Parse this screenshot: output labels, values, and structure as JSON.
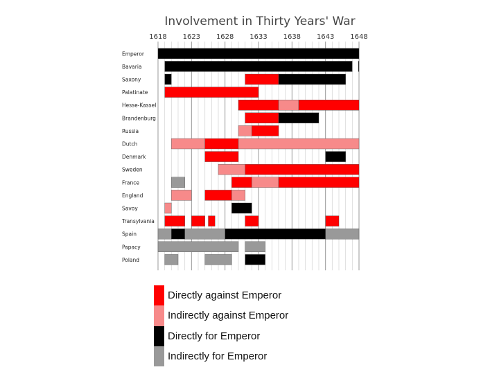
{
  "chart_data": {
    "type": "gantt",
    "title": "Involvement in Thirty Years' War",
    "x_ticks": [
      1618,
      1623,
      1628,
      1633,
      1638,
      1643,
      1648
    ],
    "xlim": [
      1618,
      1648
    ],
    "grid": true,
    "colors": {
      "direct_against": "#ff0000",
      "indirect_against": "#f78a8a",
      "direct_for": "#000000",
      "indirect_for": "#999999"
    },
    "rows": [
      {
        "label": "Emperor",
        "bars": [
          {
            "start": 1618,
            "end": 1648,
            "kind": "direct_for"
          }
        ]
      },
      {
        "label": "Bavaria",
        "bars": [
          {
            "start": 1619,
            "end": 1647,
            "kind": "direct_for"
          },
          {
            "start": 1647.9,
            "end": 1648,
            "kind": "direct_for"
          }
        ]
      },
      {
        "label": "Saxony",
        "bars": [
          {
            "start": 1619,
            "end": 1620,
            "kind": "direct_for"
          },
          {
            "start": 1631,
            "end": 1636,
            "kind": "direct_against"
          },
          {
            "start": 1636,
            "end": 1646,
            "kind": "direct_for"
          }
        ]
      },
      {
        "label": "Palatinate",
        "bars": [
          {
            "start": 1619,
            "end": 1633,
            "kind": "direct_against"
          }
        ]
      },
      {
        "label": "Hesse-Kassel",
        "bars": [
          {
            "start": 1630,
            "end": 1636,
            "kind": "direct_against"
          },
          {
            "start": 1636,
            "end": 1639,
            "kind": "indirect_against"
          },
          {
            "start": 1639,
            "end": 1648,
            "kind": "direct_against"
          }
        ]
      },
      {
        "label": "Brandenburg",
        "bars": [
          {
            "start": 1631,
            "end": 1636,
            "kind": "direct_against"
          },
          {
            "start": 1636,
            "end": 1642,
            "kind": "direct_for"
          }
        ]
      },
      {
        "label": "Russia",
        "bars": [
          {
            "start": 1630,
            "end": 1632,
            "kind": "indirect_against"
          },
          {
            "start": 1632,
            "end": 1636,
            "kind": "direct_against"
          }
        ]
      },
      {
        "label": "Dutch",
        "bars": [
          {
            "start": 1620,
            "end": 1625,
            "kind": "indirect_against"
          },
          {
            "start": 1625,
            "end": 1630,
            "kind": "direct_against"
          },
          {
            "start": 1630,
            "end": 1648,
            "kind": "indirect_against"
          }
        ]
      },
      {
        "label": "Denmark",
        "bars": [
          {
            "start": 1625,
            "end": 1630,
            "kind": "direct_against"
          },
          {
            "start": 1643,
            "end": 1646,
            "kind": "direct_for"
          }
        ]
      },
      {
        "label": "Sweden",
        "bars": [
          {
            "start": 1627,
            "end": 1631,
            "kind": "indirect_against"
          },
          {
            "start": 1631,
            "end": 1648,
            "kind": "direct_against"
          }
        ]
      },
      {
        "label": "France",
        "bars": [
          {
            "start": 1620,
            "end": 1622,
            "kind": "indirect_for"
          },
          {
            "start": 1629,
            "end": 1632,
            "kind": "direct_against"
          },
          {
            "start": 1632,
            "end": 1636,
            "kind": "indirect_against"
          },
          {
            "start": 1636,
            "end": 1648,
            "kind": "direct_against"
          }
        ]
      },
      {
        "label": "England",
        "bars": [
          {
            "start": 1620,
            "end": 1623,
            "kind": "indirect_against"
          },
          {
            "start": 1625,
            "end": 1629,
            "kind": "direct_against"
          },
          {
            "start": 1629,
            "end": 1631,
            "kind": "indirect_against"
          }
        ]
      },
      {
        "label": "Savoy",
        "bars": [
          {
            "start": 1619,
            "end": 1620,
            "kind": "indirect_against"
          },
          {
            "start": 1629,
            "end": 1632,
            "kind": "direct_for"
          }
        ]
      },
      {
        "label": "Transylvania",
        "bars": [
          {
            "start": 1619,
            "end": 1622,
            "kind": "direct_against"
          },
          {
            "start": 1623,
            "end": 1625,
            "kind": "direct_against"
          },
          {
            "start": 1625.5,
            "end": 1626.5,
            "kind": "direct_against"
          },
          {
            "start": 1631,
            "end": 1633,
            "kind": "direct_against"
          },
          {
            "start": 1643,
            "end": 1645,
            "kind": "direct_against"
          }
        ]
      },
      {
        "label": "Spain",
        "bars": [
          {
            "start": 1618,
            "end": 1620,
            "kind": "indirect_for"
          },
          {
            "start": 1620,
            "end": 1622,
            "kind": "direct_for"
          },
          {
            "start": 1622,
            "end": 1628,
            "kind": "indirect_for"
          },
          {
            "start": 1628,
            "end": 1643,
            "kind": "direct_for"
          },
          {
            "start": 1643,
            "end": 1648,
            "kind": "indirect_for"
          }
        ]
      },
      {
        "label": "Papacy",
        "bars": [
          {
            "start": 1618,
            "end": 1630,
            "kind": "indirect_for"
          },
          {
            "start": 1631,
            "end": 1634,
            "kind": "indirect_for"
          }
        ]
      },
      {
        "label": "Poland",
        "bars": [
          {
            "start": 1619,
            "end": 1621,
            "kind": "indirect_for"
          },
          {
            "start": 1625,
            "end": 1629,
            "kind": "indirect_for"
          },
          {
            "start": 1631,
            "end": 1634,
            "kind": "direct_for"
          }
        ]
      }
    ]
  },
  "legend": [
    {
      "label": "Directly against Emperor",
      "color": "#ff0000"
    },
    {
      "label": "Indirectly against Emperor",
      "color": "#f78a8a"
    },
    {
      "label": "Directly for Emperor",
      "color": "#000000"
    },
    {
      "label": "Indirectly for Emperor",
      "color": "#999999"
    }
  ]
}
